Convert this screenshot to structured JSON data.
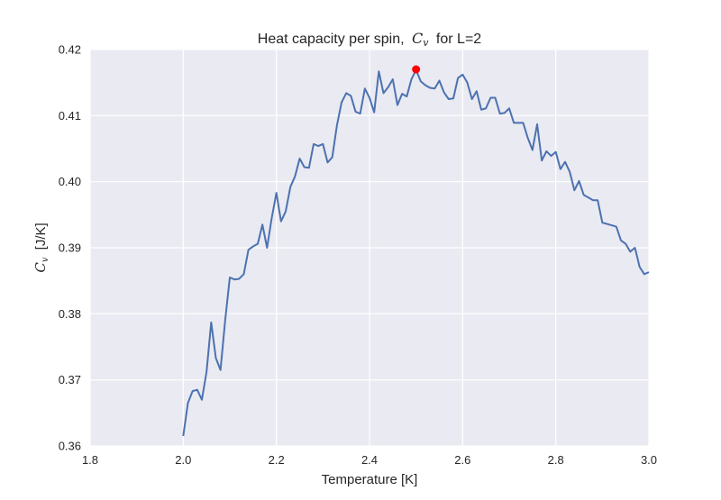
{
  "chart_data": {
    "type": "line",
    "title_prefix": "Heat capacity per spin,",
    "title_symbol": "C",
    "title_symbol_sub": "v",
    "title_suffix": "for L=2",
    "xlabel": "Temperature [K]",
    "ylabel_symbol": "C",
    "ylabel_symbol_sub": "v",
    "ylabel_suffix": "[J/K]",
    "xlim": [
      1.8,
      3.0
    ],
    "ylim": [
      0.36,
      0.42
    ],
    "xticks": [
      1.8,
      2.0,
      2.2,
      2.4,
      2.6,
      2.8,
      3.0
    ],
    "xtick_labels": [
      "1.8",
      "2.0",
      "2.2",
      "2.4",
      "2.6",
      "2.8",
      "3.0"
    ],
    "yticks": [
      0.36,
      0.37,
      0.38,
      0.39,
      0.4,
      0.41,
      0.42
    ],
    "ytick_labels": [
      "0.36",
      "0.37",
      "0.38",
      "0.39",
      "0.40",
      "0.41",
      "0.42"
    ],
    "grid": true,
    "colors": {
      "background": "#eaeaf2",
      "grid": "#ffffff",
      "line": "#4c72b0",
      "marker": "#ff0000"
    },
    "series": [
      {
        "x": [
          2.0,
          2.01,
          2.02,
          2.03,
          2.04,
          2.05,
          2.06,
          2.07,
          2.08,
          2.09,
          2.1,
          2.11,
          2.12,
          2.13,
          2.14,
          2.15,
          2.16,
          2.17,
          2.18,
          2.19,
          2.2,
          2.21,
          2.22,
          2.23,
          2.24,
          2.25,
          2.26,
          2.27,
          2.28,
          2.29,
          2.3,
          2.31,
          2.32,
          2.33,
          2.34,
          2.35,
          2.36,
          2.37,
          2.38,
          2.39,
          2.4,
          2.41,
          2.42,
          2.43,
          2.44,
          2.45,
          2.46,
          2.47,
          2.48,
          2.49,
          2.5,
          2.51,
          2.52,
          2.53,
          2.54,
          2.55,
          2.56,
          2.57,
          2.58,
          2.59,
          2.6,
          2.61,
          2.62,
          2.63,
          2.64,
          2.65,
          2.66,
          2.67,
          2.68,
          2.69,
          2.7,
          2.71,
          2.72,
          2.73,
          2.74,
          2.75,
          2.76,
          2.77,
          2.78,
          2.79,
          2.8,
          2.81,
          2.82,
          2.83,
          2.84,
          2.85,
          2.86,
          2.87,
          2.88,
          2.89,
          2.9,
          2.91,
          2.92,
          2.93,
          2.94,
          2.95,
          2.96,
          2.97,
          2.98,
          2.99,
          3.0
        ],
        "y": [
          0.3615,
          0.3665,
          0.3683,
          0.3685,
          0.367,
          0.3712,
          0.3787,
          0.3733,
          0.3715,
          0.379,
          0.3855,
          0.3852,
          0.3853,
          0.386,
          0.3897,
          0.3902,
          0.3906,
          0.3935,
          0.39,
          0.3945,
          0.3983,
          0.394,
          0.3955,
          0.3992,
          0.4008,
          0.4035,
          0.4022,
          0.4021,
          0.4057,
          0.4054,
          0.4057,
          0.4029,
          0.4037,
          0.4085,
          0.412,
          0.4134,
          0.413,
          0.4106,
          0.4103,
          0.4141,
          0.4127,
          0.4105,
          0.4167,
          0.4134,
          0.4143,
          0.4155,
          0.4116,
          0.4133,
          0.4129,
          0.4155,
          0.4169,
          0.4152,
          0.4146,
          0.4142,
          0.4141,
          0.4153,
          0.4135,
          0.4125,
          0.4126,
          0.4157,
          0.4162,
          0.415,
          0.4125,
          0.4137,
          0.4109,
          0.4111,
          0.4127,
          0.4127,
          0.4103,
          0.4104,
          0.4111,
          0.4089,
          0.4089,
          0.4089,
          0.4066,
          0.4048,
          0.4087,
          0.4032,
          0.4046,
          0.4039,
          0.4045,
          0.4019,
          0.403,
          0.4015,
          0.3987,
          0.4001,
          0.398,
          0.3976,
          0.3972,
          0.3972,
          0.3938,
          0.3936,
          0.3934,
          0.3932,
          0.3911,
          0.3906,
          0.3894,
          0.39,
          0.3871,
          0.386,
          0.3863
        ]
      }
    ],
    "highlight_point": {
      "x": 2.5,
      "y": 0.417
    }
  }
}
